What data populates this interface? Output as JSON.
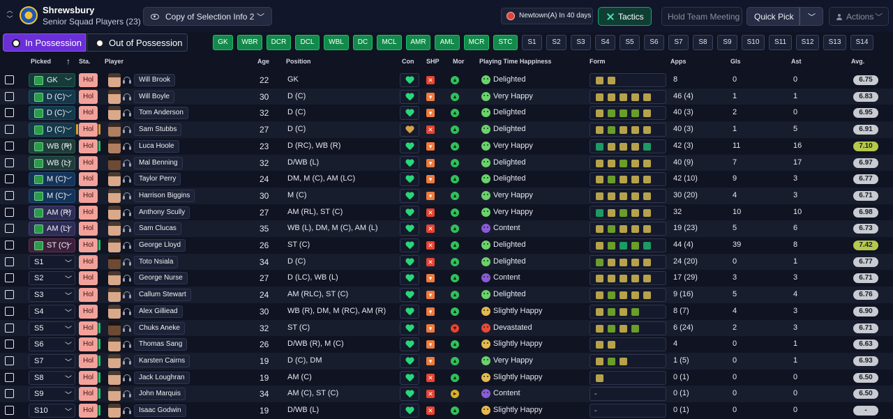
{
  "header": {
    "club_name": "Shrewsbury",
    "squad_label": "Senior Squad Players (23)",
    "selection_dropdown": "Copy of Selection Info 2",
    "fixture": "Newtown(A) In 40 days",
    "tactics_label": "Tactics",
    "meeting_label": "Hold Team Meeting",
    "quick_pick_label": "Quick Pick",
    "actions_label": "Actions"
  },
  "possession_tabs": {
    "in": "In Possession",
    "out": "Out of Possession"
  },
  "position_chips": [
    {
      "label": "GK",
      "on": true
    },
    {
      "label": "WBR",
      "on": true
    },
    {
      "label": "DCR",
      "on": true
    },
    {
      "label": "DCL",
      "on": true
    },
    {
      "label": "WBL",
      "on": true
    },
    {
      "label": "DC",
      "on": true
    },
    {
      "label": "MCL",
      "on": true
    },
    {
      "label": "AMR",
      "on": true
    },
    {
      "label": "AML",
      "on": true
    },
    {
      "label": "MCR",
      "on": true
    },
    {
      "label": "STC",
      "on": true
    },
    {
      "label": "S1",
      "on": false
    },
    {
      "label": "S2",
      "on": false
    },
    {
      "label": "S3",
      "on": false
    },
    {
      "label": "S4",
      "on": false
    },
    {
      "label": "S5",
      "on": false
    },
    {
      "label": "S6",
      "on": false
    },
    {
      "label": "S7",
      "on": false
    },
    {
      "label": "S8",
      "on": false
    },
    {
      "label": "S9",
      "on": false
    },
    {
      "label": "S10",
      "on": false
    },
    {
      "label": "S11",
      "on": false
    },
    {
      "label": "S12",
      "on": false
    },
    {
      "label": "S13",
      "on": false
    },
    {
      "label": "S14",
      "on": false
    }
  ],
  "columns": {
    "picked": "Picked",
    "sta": "Sta.",
    "player": "Player",
    "age": "Age",
    "position": "Position",
    "con": "Con",
    "shp": "SHP",
    "mor": "Mor",
    "pth": "Playing Time Happiness",
    "form": "Form",
    "apps": "Apps",
    "gls": "Gls",
    "ast": "Ast",
    "avg": "Avg."
  },
  "status_label": "Hol",
  "rows": [
    {
      "picked": "GK",
      "kind": "gk",
      "name": "Will Brook",
      "age": "22",
      "position": "GK",
      "con": "green",
      "shp": "x",
      "mor": "good",
      "pth": "Delighted",
      "pth_kind": "good",
      "form": [
        "y",
        "y"
      ],
      "apps": "8",
      "gls": "0",
      "ast": "0",
      "avg": "6.75",
      "avg_hi": false,
      "bar": "",
      "face": "light"
    },
    {
      "picked": "D (C)",
      "kind": "d",
      "name": "Will Boyle",
      "age": "30",
      "position": "D (C)",
      "con": "green",
      "shp": "dn",
      "mor": "good",
      "pth": "Very Happy",
      "pth_kind": "good",
      "form": [
        "y",
        "y",
        "y",
        "y",
        "y"
      ],
      "apps": "46 (4)",
      "gls": "1",
      "ast": "1",
      "avg": "6.83",
      "avg_hi": false,
      "bar": "",
      "face": "light"
    },
    {
      "picked": "D (C)",
      "kind": "d",
      "name": "Tom Anderson",
      "age": "32",
      "position": "D (C)",
      "con": "green",
      "shp": "dn",
      "mor": "good",
      "pth": "Delighted",
      "pth_kind": "good",
      "form": [
        "y",
        "g",
        "g",
        "g",
        "y"
      ],
      "apps": "40 (3)",
      "gls": "2",
      "ast": "0",
      "avg": "6.95",
      "avg_hi": false,
      "bar": "",
      "face": "light"
    },
    {
      "picked": "D (C)",
      "kind": "d",
      "name": "Sam Stubbs",
      "age": "27",
      "position": "D (C)",
      "con": "amber",
      "shp": "x",
      "mor": "good",
      "pth": "Delighted",
      "pth_kind": "good",
      "form": [
        "y",
        "g",
        "y",
        "y",
        "y"
      ],
      "apps": "40 (3)",
      "gls": "1",
      "ast": "5",
      "avg": "6.91",
      "avg_hi": false,
      "bar": "orange",
      "face": "mid"
    },
    {
      "picked": "WB (R)",
      "kind": "wb",
      "name": "Luca Hoole",
      "age": "23",
      "position": "D (RC), WB (R)",
      "con": "green",
      "shp": "dn",
      "mor": "good",
      "pth": "Very Happy",
      "pth_kind": "good",
      "form": [
        "t",
        "y",
        "y",
        "y",
        "t"
      ],
      "apps": "42 (3)",
      "gls": "11",
      "ast": "16",
      "avg": "7.10",
      "avg_hi": true,
      "bar": "green",
      "face": "mid"
    },
    {
      "picked": "WB (L)",
      "kind": "wb",
      "name": "Mal Benning",
      "age": "32",
      "position": "D/WB (L)",
      "con": "green",
      "shp": "dn",
      "mor": "good",
      "pth": "Delighted",
      "pth_kind": "good",
      "form": [
        "y",
        "y",
        "g",
        "y",
        "y"
      ],
      "apps": "40 (9)",
      "gls": "7",
      "ast": "17",
      "avg": "6.97",
      "avg_hi": false,
      "bar": "",
      "face": "dark"
    },
    {
      "picked": "M (C)",
      "kind": "m",
      "name": "Taylor Perry",
      "age": "24",
      "position": "DM, M (C), AM (LC)",
      "con": "green",
      "shp": "dn",
      "mor": "good",
      "pth": "Delighted",
      "pth_kind": "good",
      "form": [
        "y",
        "g",
        "y",
        "y",
        "y"
      ],
      "apps": "42 (10)",
      "gls": "9",
      "ast": "3",
      "avg": "6.77",
      "avg_hi": false,
      "bar": "",
      "face": "light"
    },
    {
      "picked": "M (C)",
      "kind": "m",
      "name": "Harrison Biggins",
      "age": "30",
      "position": "M (C)",
      "con": "green",
      "shp": "dn",
      "mor": "good",
      "pth": "Very Happy",
      "pth_kind": "good",
      "form": [
        "y",
        "y",
        "y",
        "y",
        "y"
      ],
      "apps": "30 (20)",
      "gls": "4",
      "ast": "3",
      "avg": "6.71",
      "avg_hi": false,
      "bar": "",
      "face": "light"
    },
    {
      "picked": "AM (R)",
      "kind": "am",
      "name": "Anthony Scully",
      "age": "27",
      "position": "AM (RL), ST (C)",
      "con": "green",
      "shp": "x",
      "mor": "good",
      "pth": "Very Happy",
      "pth_kind": "good",
      "form": [
        "t",
        "y",
        "g",
        "y",
        "y"
      ],
      "apps": "32",
      "gls": "10",
      "ast": "10",
      "avg": "6.98",
      "avg_hi": false,
      "bar": "",
      "face": "light"
    },
    {
      "picked": "AM (L)",
      "kind": "am",
      "name": "Sam Clucas",
      "age": "35",
      "position": "WB (L), DM, M (C), AM (L)",
      "con": "green",
      "shp": "x",
      "mor": "good",
      "pth": "Content",
      "pth_kind": "content",
      "form": [
        "y",
        "g",
        "y",
        "y",
        "y"
      ],
      "apps": "19 (23)",
      "gls": "5",
      "ast": "6",
      "avg": "6.73",
      "avg_hi": false,
      "bar": "",
      "face": "light"
    },
    {
      "picked": "ST (C)",
      "kind": "st",
      "name": "George Lloyd",
      "age": "26",
      "position": "ST (C)",
      "con": "green",
      "shp": "x",
      "mor": "good",
      "pth": "Delighted",
      "pth_kind": "good",
      "form": [
        "y",
        "g",
        "t",
        "g",
        "t"
      ],
      "apps": "44 (4)",
      "gls": "39",
      "ast": "8",
      "avg": "7.42",
      "avg_hi": true,
      "bar": "green",
      "face": "light"
    },
    {
      "picked": "S1",
      "kind": "sub",
      "name": "Toto Nsiala",
      "age": "34",
      "position": "D (C)",
      "con": "green",
      "shp": "x",
      "mor": "good",
      "pth": "Delighted",
      "pth_kind": "good",
      "form": [
        "g",
        "y",
        "y",
        "y",
        "y"
      ],
      "apps": "24 (20)",
      "gls": "0",
      "ast": "1",
      "avg": "6.77",
      "avg_hi": false,
      "bar": "",
      "face": "dark"
    },
    {
      "picked": "S2",
      "kind": "sub",
      "name": "George Nurse",
      "age": "27",
      "position": "D (LC), WB (L)",
      "con": "green",
      "shp": "dn",
      "mor": "good",
      "pth": "Content",
      "pth_kind": "content",
      "form": [
        "y",
        "y",
        "y",
        "y",
        "y"
      ],
      "apps": "17 (29)",
      "gls": "3",
      "ast": "3",
      "avg": "6.71",
      "avg_hi": false,
      "bar": "",
      "face": "light"
    },
    {
      "picked": "S3",
      "kind": "sub",
      "name": "Callum Stewart",
      "age": "24",
      "position": "AM (RLC), ST (C)",
      "con": "green",
      "shp": "dn",
      "mor": "good",
      "pth": "Delighted",
      "pth_kind": "good",
      "form": [
        "y",
        "g",
        "y",
        "y",
        "y"
      ],
      "apps": "9 (16)",
      "gls": "5",
      "ast": "4",
      "avg": "6.76",
      "avg_hi": false,
      "bar": "",
      "face": "light"
    },
    {
      "picked": "S4",
      "kind": "sub",
      "name": "Alex Gilliead",
      "age": "30",
      "position": "WB (R), DM, M (RC), AM (R)",
      "con": "green",
      "shp": "dn",
      "mor": "good",
      "pth": "Slightly Happy",
      "pth_kind": "slight",
      "form": [
        "y",
        "g",
        "y",
        "g"
      ],
      "apps": "8 (7)",
      "gls": "4",
      "ast": "3",
      "avg": "6.90",
      "avg_hi": false,
      "bar": "",
      "face": "light"
    },
    {
      "picked": "S5",
      "kind": "sub",
      "name": "Chuks Aneke",
      "age": "32",
      "position": "ST (C)",
      "con": "green",
      "shp": "dn",
      "mor": "bad",
      "pth": "Devastated",
      "pth_kind": "dev",
      "form": [
        "y",
        "g",
        "y",
        "g"
      ],
      "apps": "6 (24)",
      "gls": "2",
      "ast": "3",
      "avg": "6.71",
      "avg_hi": false,
      "bar": "green",
      "face": "dark"
    },
    {
      "picked": "S6",
      "kind": "sub",
      "name": "Thomas Sang",
      "age": "26",
      "position": "D/WB (R), M (C)",
      "con": "green",
      "shp": "dn",
      "mor": "good",
      "pth": "Slightly Happy",
      "pth_kind": "slight",
      "form": [
        "y",
        "y"
      ],
      "apps": "4",
      "gls": "0",
      "ast": "1",
      "avg": "6.63",
      "avg_hi": false,
      "bar": "green",
      "face": "light"
    },
    {
      "picked": "S7",
      "kind": "sub",
      "name": "Karsten Cairns",
      "age": "19",
      "position": "D (C), DM",
      "con": "green",
      "shp": "dn",
      "mor": "good",
      "pth": "Very Happy",
      "pth_kind": "good",
      "form": [
        "y",
        "g",
        "y"
      ],
      "apps": "1 (5)",
      "gls": "0",
      "ast": "1",
      "avg": "6.93",
      "avg_hi": false,
      "bar": "green",
      "face": "light"
    },
    {
      "picked": "S8",
      "kind": "sub",
      "name": "Jack Loughran",
      "age": "19",
      "position": "AM (C)",
      "con": "green",
      "shp": "x",
      "mor": "good",
      "pth": "Slightly Happy",
      "pth_kind": "slight",
      "form": [
        "y"
      ],
      "apps": "0 (1)",
      "gls": "0",
      "ast": "0",
      "avg": "6.50",
      "avg_hi": false,
      "bar": "green",
      "face": "light"
    },
    {
      "picked": "S9",
      "kind": "sub",
      "name": "John Marquis",
      "age": "34",
      "position": "AM (C), ST (C)",
      "con": "green",
      "shp": "x",
      "mor": "ok",
      "pth": "Content",
      "pth_kind": "content",
      "form": [],
      "form_dash": "-",
      "apps": "0 (1)",
      "gls": "0",
      "ast": "0",
      "avg": "6.50",
      "avg_hi": false,
      "bar": "green",
      "face": "light"
    },
    {
      "picked": "S10",
      "kind": "sub",
      "name": "Isaac Godwin",
      "age": "19",
      "position": "D/WB (L)",
      "con": "green",
      "shp": "x",
      "mor": "good",
      "pth": "Slightly Happy",
      "pth_kind": "slight",
      "form": [],
      "form_dash": "-",
      "apps": "0 (1)",
      "gls": "0",
      "ast": "0",
      "avg": "-",
      "avg_hi": false,
      "bar": "green",
      "face": "light"
    }
  ]
}
